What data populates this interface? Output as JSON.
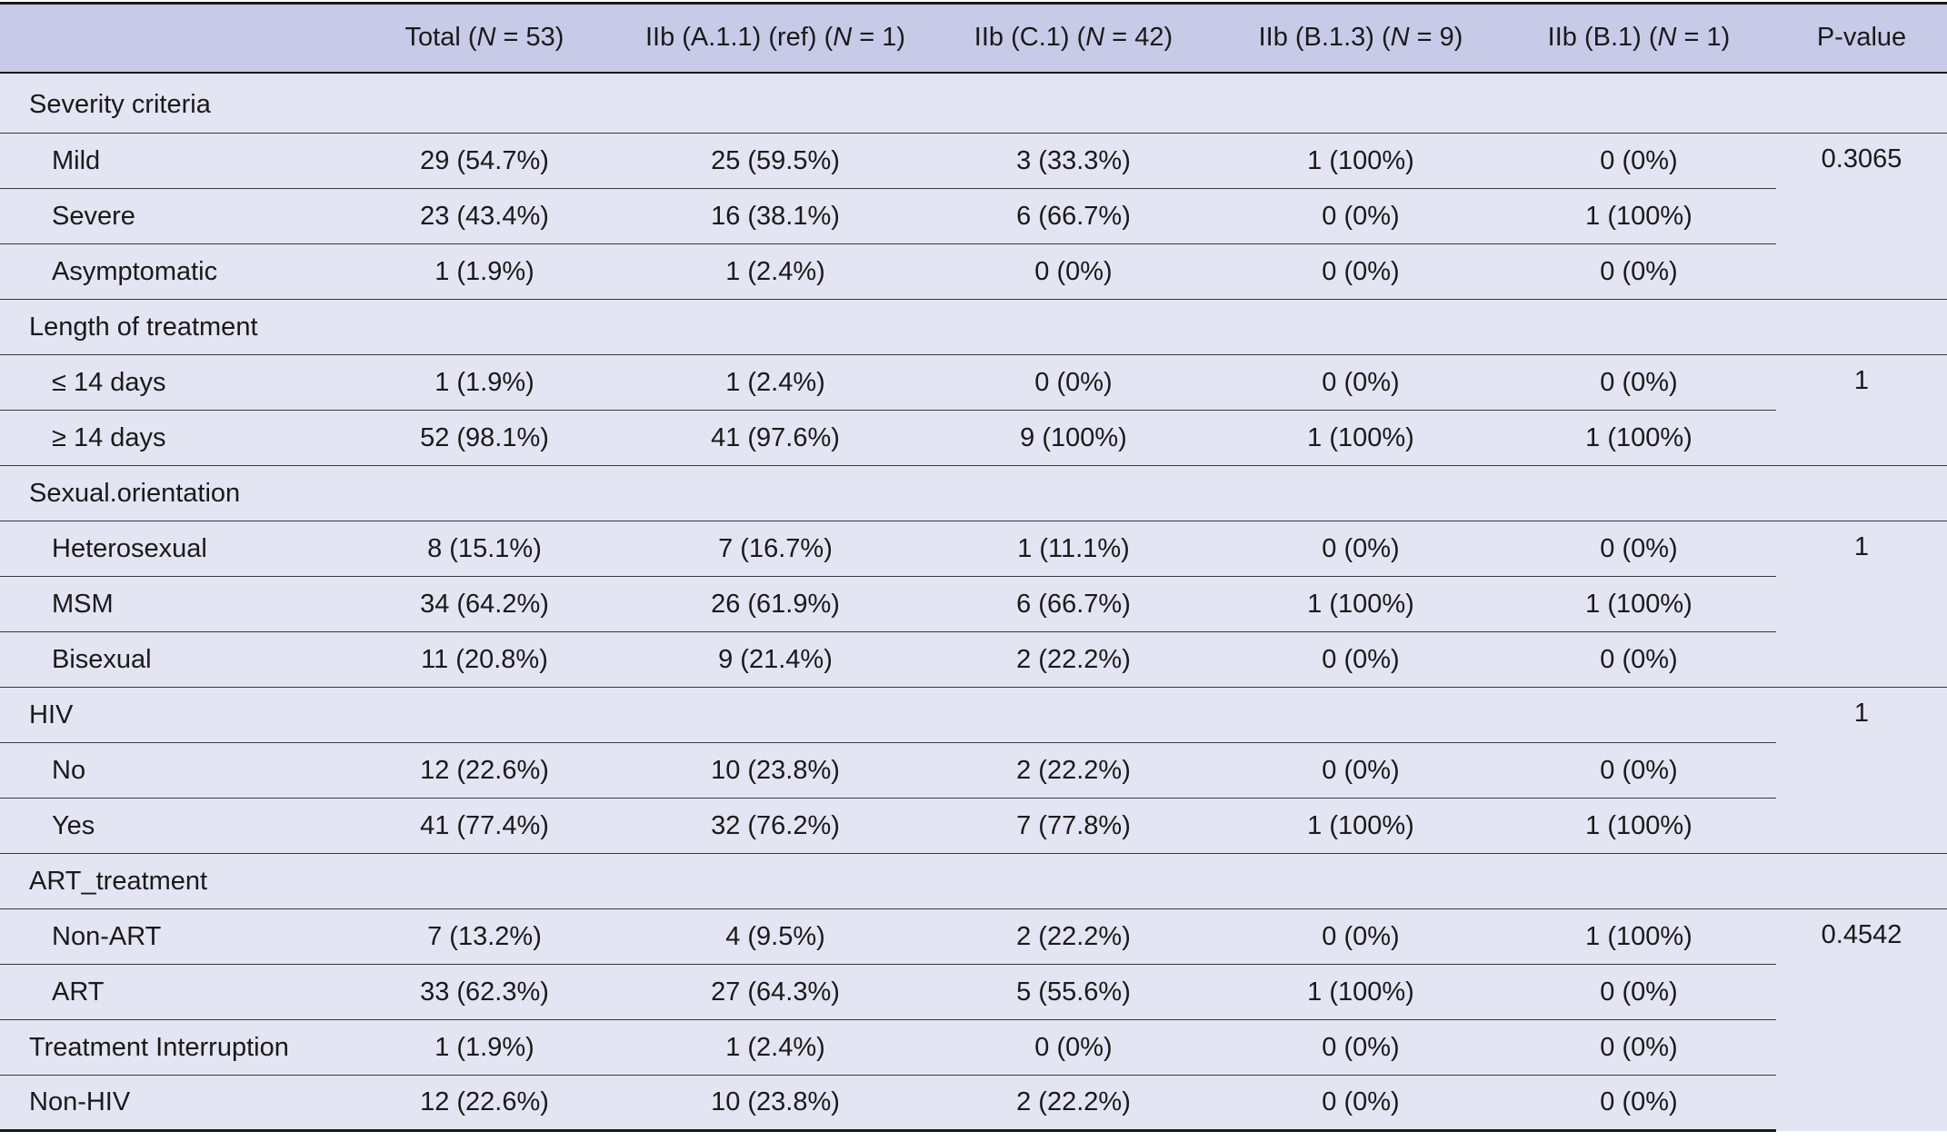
{
  "header": {
    "col0": "",
    "total": {
      "pre": "Total (",
      "n": "N",
      "post": " = 53)"
    },
    "a11": {
      "pre": "IIb (A.1.1) (ref) (",
      "n": "N",
      "post": " = 1)"
    },
    "c1": {
      "pre": "IIb (C.1) (",
      "n": "N",
      "post": " = 42)"
    },
    "b13": {
      "pre": "IIb (B.1.3) (",
      "n": "N",
      "post": " = 9)"
    },
    "b1": {
      "pre": "IIb (B.1) (",
      "n": "N",
      "post": " = 1)"
    },
    "pvalue": "P-value"
  },
  "rows": {
    "severity": {
      "label": "Severity criteria"
    },
    "mild": {
      "label": "Mild",
      "v": [
        "29 (54.7%)",
        "25 (59.5%)",
        "3 (33.3%)",
        "1 (100%)",
        "0 (0%)"
      ],
      "p": "0.3065"
    },
    "severe": {
      "label": "Severe",
      "v": [
        "23 (43.4%)",
        "16 (38.1%)",
        "6 (66.7%)",
        "0 (0%)",
        "1 (100%)"
      ]
    },
    "asym": {
      "label": "Asymptomatic",
      "v": [
        "1 (1.9%)",
        "1 (2.4%)",
        "0 (0%)",
        "0 (0%)",
        "0 (0%)"
      ]
    },
    "length": {
      "label": "Length of treatment"
    },
    "le14": {
      "label": "≤ 14 days",
      "v": [
        "1 (1.9%)",
        "1 (2.4%)",
        "0 (0%)",
        "0 (0%)",
        "0 (0%)"
      ],
      "p": "1"
    },
    "ge14": {
      "label": "≥ 14 days",
      "v": [
        "52 (98.1%)",
        "41 (97.6%)",
        "9 (100%)",
        "1 (100%)",
        "1 (100%)"
      ]
    },
    "sexual": {
      "label": "Sexual.orientation"
    },
    "hetero": {
      "label": "Heterosexual",
      "v": [
        "8 (15.1%)",
        "7 (16.7%)",
        "1 (11.1%)",
        "0 (0%)",
        "0 (0%)"
      ],
      "p": "1"
    },
    "msm": {
      "label": "MSM",
      "v": [
        "34 (64.2%)",
        "26 (61.9%)",
        "6 (66.7%)",
        "1 (100%)",
        "1 (100%)"
      ]
    },
    "bisexual": {
      "label": "Bisexual",
      "v": [
        "11 (20.8%)",
        "9 (21.4%)",
        "2 (22.2%)",
        "0 (0%)",
        "0 (0%)"
      ]
    },
    "hiv": {
      "label": "HIV",
      "p": "1"
    },
    "no": {
      "label": "No",
      "v": [
        "12 (22.6%)",
        "10 (23.8%)",
        "2 (22.2%)",
        "0 (0%)",
        "0 (0%)"
      ]
    },
    "yes": {
      "label": "Yes",
      "v": [
        "41 (77.4%)",
        "32 (76.2%)",
        "7 (77.8%)",
        "1 (100%)",
        "1 (100%)"
      ]
    },
    "art": {
      "label": "ART_treatment"
    },
    "nonart": {
      "label": "Non-ART",
      "v": [
        "7 (13.2%)",
        "4 (9.5%)",
        "2 (22.2%)",
        "0 (0%)",
        "1 (100%)"
      ],
      "p": "0.4542"
    },
    "artyes": {
      "label": "ART",
      "v": [
        "33 (62.3%)",
        "27 (64.3%)",
        "5 (55.6%)",
        "1 (100%)",
        "0 (0%)"
      ]
    },
    "interrupt": {
      "label": "Treatment Interruption",
      "v": [
        "1 (1.9%)",
        "1 (2.4%)",
        "0 (0%)",
        "0 (0%)",
        "0 (0%)"
      ]
    },
    "nonhiv": {
      "label": "Non-HIV",
      "v": [
        "12 (22.6%)",
        "10 (23.8%)",
        "2 (22.2%)",
        "0 (0%)",
        "0 (0%)"
      ]
    }
  }
}
